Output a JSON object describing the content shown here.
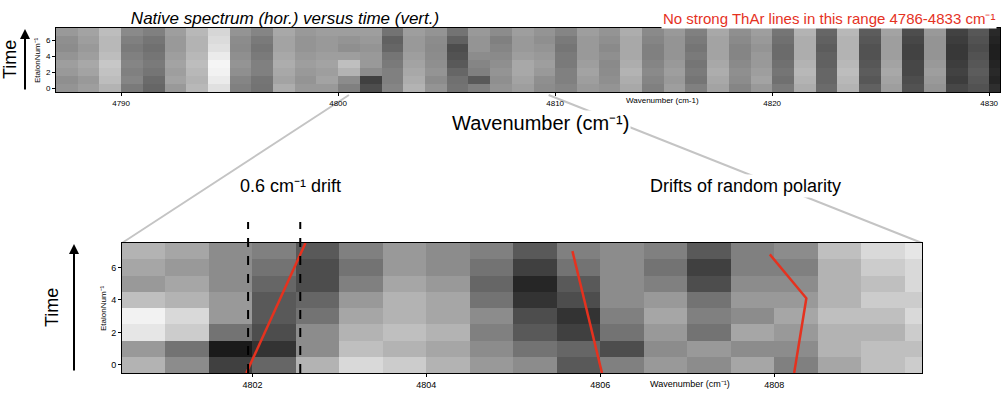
{
  "chart_data": [
    {
      "type": "heatmap",
      "title": "Native spectrum (hor.) versus time (vert.)",
      "x_label": "Wavenumber (cm-1)",
      "y_label": "EtalonNum⁻¹",
      "color": "gray",
      "zlim": [
        0,
        1
      ],
      "xlim": [
        4787,
        4830.5
      ],
      "ylim": [
        -0.5,
        7.5
      ],
      "xticks": [
        4790,
        4800,
        4810,
        4820,
        4830
      ],
      "yticks": [
        0,
        2,
        4,
        6
      ],
      "x": [
        4787.5,
        4788.5,
        4789.5,
        4790.5,
        4791.5,
        4792.5,
        4793.5,
        4794.5,
        4795.5,
        4796.5,
        4797.5,
        4798.5,
        4799.5,
        4800.5,
        4801.5,
        4802.5,
        4803.5,
        4804.5,
        4805.5,
        4806.5,
        4807.5,
        4808.5,
        4809.5,
        4810.5,
        4811.5,
        4812.5,
        4813.5,
        4814.5,
        4815.5,
        4816.5,
        4817.5,
        4818.5,
        4819.5,
        4820.5,
        4821.5,
        4822.5,
        4823.5,
        4824.5,
        4825.5,
        4826.5,
        4827.5,
        4828.5,
        4829.5,
        4830.5
      ],
      "y": [
        0,
        1,
        2,
        3,
        4,
        5,
        6,
        7
      ],
      "cells": [
        [
          0.58,
          0.62,
          0.7,
          0.48,
          0.4,
          0.6,
          0.72,
          0.88,
          0.5,
          0.45,
          0.68,
          0.6,
          0.6,
          0.5,
          0.3,
          0.52,
          0.7,
          0.58,
          0.45,
          0.5,
          0.58,
          0.62,
          0.55,
          0.52,
          0.6,
          0.58,
          0.66,
          0.5,
          0.62,
          0.5,
          0.64,
          0.52,
          0.6,
          0.48,
          0.68,
          0.42,
          0.7,
          0.38,
          0.62,
          0.32,
          0.58,
          0.28,
          0.32,
          0.18
        ],
        [
          0.56,
          0.6,
          0.74,
          0.52,
          0.42,
          0.64,
          0.7,
          0.92,
          0.52,
          0.46,
          0.64,
          0.58,
          0.64,
          0.55,
          0.25,
          0.5,
          0.68,
          0.55,
          0.44,
          0.35,
          0.56,
          0.64,
          0.56,
          0.5,
          0.62,
          0.56,
          0.68,
          0.52,
          0.6,
          0.46,
          0.66,
          0.55,
          0.64,
          0.44,
          0.7,
          0.4,
          0.72,
          0.34,
          0.64,
          0.3,
          0.6,
          0.24,
          0.34,
          0.14
        ],
        [
          0.6,
          0.64,
          0.76,
          0.5,
          0.46,
          0.62,
          0.72,
          0.95,
          0.56,
          0.5,
          0.66,
          0.6,
          0.62,
          0.7,
          0.55,
          0.5,
          0.66,
          0.58,
          0.4,
          0.5,
          0.58,
          0.66,
          0.6,
          0.5,
          0.64,
          0.55,
          0.7,
          0.54,
          0.62,
          0.48,
          0.68,
          0.56,
          0.62,
          0.46,
          0.72,
          0.4,
          0.74,
          0.36,
          0.66,
          0.28,
          0.62,
          0.26,
          0.36,
          0.16
        ],
        [
          0.62,
          0.66,
          0.78,
          0.52,
          0.48,
          0.64,
          0.74,
          0.96,
          0.58,
          0.5,
          0.68,
          0.62,
          0.64,
          0.75,
          0.6,
          0.48,
          0.64,
          0.56,
          0.35,
          0.52,
          0.56,
          0.66,
          0.62,
          0.48,
          0.62,
          0.54,
          0.68,
          0.52,
          0.6,
          0.46,
          0.66,
          0.54,
          0.6,
          0.44,
          0.7,
          0.38,
          0.72,
          0.34,
          0.64,
          0.28,
          0.6,
          0.24,
          0.34,
          0.14
        ],
        [
          0.58,
          0.62,
          0.74,
          0.5,
          0.46,
          0.62,
          0.72,
          0.92,
          0.56,
          0.48,
          0.66,
          0.6,
          0.62,
          0.62,
          0.6,
          0.46,
          0.62,
          0.55,
          0.32,
          0.55,
          0.54,
          0.62,
          0.6,
          0.48,
          0.6,
          0.56,
          0.66,
          0.5,
          0.58,
          0.48,
          0.64,
          0.52,
          0.6,
          0.42,
          0.68,
          0.38,
          0.7,
          0.32,
          0.62,
          0.26,
          0.58,
          0.22,
          0.32,
          0.12
        ],
        [
          0.55,
          0.6,
          0.72,
          0.48,
          0.44,
          0.6,
          0.7,
          0.88,
          0.54,
          0.46,
          0.64,
          0.58,
          0.6,
          0.56,
          0.58,
          0.4,
          0.6,
          0.54,
          0.3,
          0.58,
          0.52,
          0.6,
          0.58,
          0.46,
          0.6,
          0.54,
          0.66,
          0.5,
          0.58,
          0.46,
          0.64,
          0.52,
          0.58,
          0.42,
          0.68,
          0.36,
          0.7,
          0.32,
          0.62,
          0.26,
          0.58,
          0.22,
          0.3,
          0.12
        ],
        [
          0.56,
          0.62,
          0.72,
          0.5,
          0.46,
          0.6,
          0.7,
          0.86,
          0.55,
          0.48,
          0.64,
          0.58,
          0.6,
          0.58,
          0.6,
          0.38,
          0.6,
          0.55,
          0.38,
          0.58,
          0.5,
          0.6,
          0.56,
          0.48,
          0.6,
          0.56,
          0.66,
          0.52,
          0.58,
          0.48,
          0.64,
          0.54,
          0.6,
          0.44,
          0.68,
          0.38,
          0.7,
          0.34,
          0.62,
          0.28,
          0.58,
          0.24,
          0.32,
          0.14
        ],
        [
          0.6,
          0.64,
          0.74,
          0.54,
          0.5,
          0.62,
          0.72,
          0.84,
          0.58,
          0.52,
          0.66,
          0.6,
          0.62,
          0.62,
          0.62,
          0.45,
          0.62,
          0.58,
          0.45,
          0.6,
          0.55,
          0.62,
          0.58,
          0.52,
          0.62,
          0.58,
          0.68,
          0.54,
          0.6,
          0.5,
          0.66,
          0.56,
          0.62,
          0.46,
          0.7,
          0.4,
          0.72,
          0.36,
          0.64,
          0.3,
          0.6,
          0.26,
          0.34,
          0.16
        ]
      ],
      "annotations": [
        {
          "text": "No strong ThAr lines in this range 4786-4833 cm⁻¹",
          "color": "#e5321f"
        },
        {
          "text": "Wavenumber (cm⁻¹)"
        },
        {
          "text": "Time"
        }
      ]
    },
    {
      "type": "heatmap",
      "x_label": "Wavenumber (cm⁻¹)",
      "y_label": "EtalonNum⁻¹",
      "color": "gray",
      "zlim": [
        0,
        1
      ],
      "xlim": [
        4800.5,
        4809.7
      ],
      "ylim": [
        -0.5,
        7.5
      ],
      "xticks": [
        4802,
        4804,
        4806,
        4808
      ],
      "yticks": [
        0,
        2,
        4,
        6
      ],
      "x": [
        4800.75,
        4801.25,
        4801.75,
        4802.25,
        4802.75,
        4803.25,
        4803.75,
        4804.25,
        4804.75,
        4805.25,
        4805.75,
        4806.25,
        4806.75,
        4807.25,
        4807.75,
        4808.25,
        4808.75,
        4809.25,
        4809.75
      ],
      "y": [
        0,
        1,
        2,
        3,
        4,
        5,
        6,
        7
      ],
      "cells": [
        [
          0.7,
          0.55,
          0.25,
          0.4,
          0.7,
          0.85,
          0.8,
          0.7,
          0.6,
          0.55,
          0.35,
          0.5,
          0.6,
          0.55,
          0.65,
          0.5,
          0.65,
          0.75,
          0.8
        ],
        [
          0.6,
          0.45,
          0.1,
          0.2,
          0.55,
          0.75,
          0.7,
          0.65,
          0.55,
          0.45,
          0.4,
          0.3,
          0.55,
          0.6,
          0.55,
          0.55,
          0.7,
          0.75,
          0.75
        ],
        [
          0.9,
          0.8,
          0.45,
          0.3,
          0.55,
          0.7,
          0.75,
          0.7,
          0.5,
          0.35,
          0.25,
          0.45,
          0.6,
          0.45,
          0.65,
          0.6,
          0.7,
          0.7,
          0.8
        ],
        [
          0.95,
          0.85,
          0.6,
          0.35,
          0.45,
          0.65,
          0.7,
          0.65,
          0.55,
          0.3,
          0.2,
          0.5,
          0.65,
          0.5,
          0.55,
          0.65,
          0.75,
          0.75,
          0.85
        ],
        [
          0.75,
          0.7,
          0.6,
          0.35,
          0.4,
          0.6,
          0.7,
          0.65,
          0.45,
          0.2,
          0.3,
          0.55,
          0.6,
          0.45,
          0.6,
          0.6,
          0.7,
          0.8,
          0.8
        ],
        [
          0.6,
          0.65,
          0.55,
          0.4,
          0.3,
          0.5,
          0.65,
          0.6,
          0.4,
          0.15,
          0.35,
          0.55,
          0.5,
          0.3,
          0.55,
          0.55,
          0.7,
          0.75,
          0.85
        ],
        [
          0.65,
          0.6,
          0.55,
          0.45,
          0.3,
          0.45,
          0.6,
          0.55,
          0.45,
          0.25,
          0.45,
          0.55,
          0.45,
          0.25,
          0.5,
          0.5,
          0.7,
          0.8,
          0.85
        ],
        [
          0.7,
          0.65,
          0.55,
          0.5,
          0.35,
          0.5,
          0.6,
          0.55,
          0.5,
          0.35,
          0.5,
          0.55,
          0.5,
          0.35,
          0.5,
          0.55,
          0.75,
          0.85,
          0.9
        ]
      ],
      "drift_lines": [
        {
          "x": [
            4801.93,
            4802.61
          ],
          "y": [
            -0.5,
            7.5
          ],
          "color": "#e5321f"
        },
        {
          "x": [
            4806.02,
            4805.68
          ],
          "y": [
            -0.5,
            7.0
          ],
          "color": "#e5321f"
        },
        {
          "x": [
            4808.23,
            4808.37,
            4807.95
          ],
          "y": [
            -0.5,
            4.1,
            6.8
          ],
          "color": "#e5321f"
        }
      ],
      "reference_lines": {
        "x": [
          4801.95,
          4802.55
        ],
        "color": "black",
        "line_style": "dashed"
      },
      "annotations": [
        {
          "text": "0.6 cm⁻¹ drift"
        },
        {
          "text": "Drifts of random polarity"
        },
        {
          "text": "Time"
        }
      ]
    }
  ]
}
